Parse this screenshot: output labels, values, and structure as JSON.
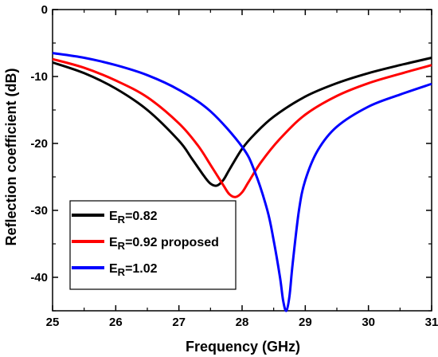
{
  "chart_data": {
    "type": "line",
    "title": "",
    "xlabel": "Frequency (GHz)",
    "ylabel": "Reflection coefficient (dB)",
    "xlim": [
      25,
      31
    ],
    "ylim": [
      -45,
      0
    ],
    "xticks": [
      25,
      26,
      27,
      28,
      29,
      30,
      31
    ],
    "yticks": [
      0,
      -10,
      -20,
      -30,
      -40
    ],
    "grid": false,
    "legend_position": "bottom-left",
    "series": [
      {
        "name_main": "E",
        "name_sub": "R",
        "name_rest": "=0.82",
        "color": "#000000",
        "x": [
          25,
          25.5,
          26,
          26.5,
          27,
          27.2,
          27.4,
          27.5,
          27.6,
          27.7,
          27.8,
          28,
          28.2,
          28.5,
          29,
          29.5,
          30,
          30.5,
          31
        ],
        "y": [
          -7.9,
          -9.5,
          -11.8,
          -15.0,
          -19.6,
          -22.2,
          -24.9,
          -26.0,
          -26.3,
          -25.5,
          -23.9,
          -20.8,
          -18.6,
          -16.0,
          -13.0,
          -11.0,
          -9.5,
          -8.3,
          -7.2
        ]
      },
      {
        "name_main": "E",
        "name_sub": "R",
        "name_rest": "=0.92 proposed",
        "color": "#ff0000",
        "x": [
          25,
          25.5,
          26,
          26.5,
          27,
          27.3,
          27.5,
          27.7,
          27.8,
          27.9,
          28.0,
          28.1,
          28.3,
          28.6,
          29,
          29.5,
          30,
          30.5,
          31
        ],
        "y": [
          -7.4,
          -8.7,
          -10.6,
          -13.1,
          -17.0,
          -20.3,
          -23.2,
          -26.2,
          -27.6,
          -28.0,
          -27.3,
          -25.8,
          -22.8,
          -19.3,
          -15.7,
          -12.9,
          -11.0,
          -9.6,
          -8.3
        ]
      },
      {
        "name_main": "E",
        "name_sub": "R",
        "name_rest": "=1.02",
        "color": "#0000ff",
        "x": [
          25,
          25.5,
          26,
          26.5,
          27,
          27.5,
          28,
          28.2,
          28.4,
          28.5,
          28.6,
          28.65,
          28.7,
          28.75,
          28.8,
          28.9,
          29.0,
          29.2,
          29.5,
          30,
          30.5,
          31
        ],
        "y": [
          -6.5,
          -7.2,
          -8.3,
          -9.8,
          -12.0,
          -15.2,
          -20.5,
          -24.2,
          -30.0,
          -34.5,
          -40.0,
          -43.5,
          -45.0,
          -42.8,
          -38.0,
          -30.0,
          -25.5,
          -21.0,
          -17.5,
          -14.5,
          -12.7,
          -11.1
        ]
      }
    ]
  }
}
